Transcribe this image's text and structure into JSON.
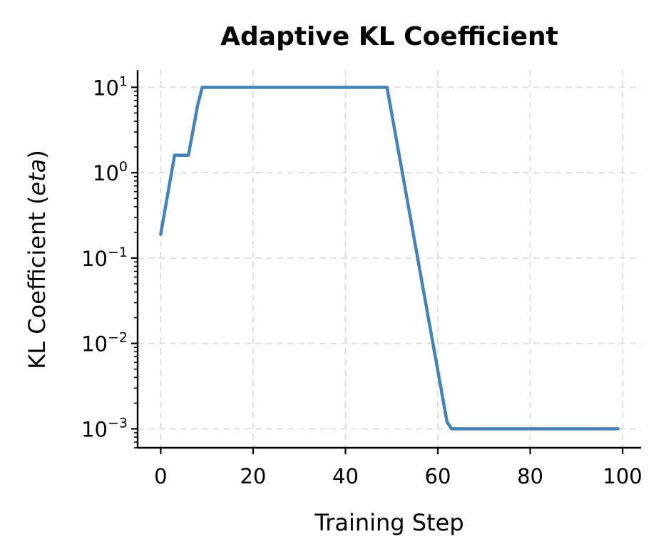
{
  "chart_data": {
    "type": "line",
    "title": "Adaptive KL Coefficient",
    "xlabel": "Training Step",
    "ylabel": "KL Coefficient (eta)",
    "ylabel_prefix": "KL Coefficient (",
    "ylabel_italic": "eta",
    "ylabel_suffix": ")",
    "xlim": [
      -5,
      104
    ],
    "ylim": [
      0.0006,
      16
    ],
    "yscale": "log",
    "grid": true,
    "x_ticks": [
      {
        "value": 0,
        "label": "0"
      },
      {
        "value": 20,
        "label": "20"
      },
      {
        "value": 40,
        "label": "40"
      },
      {
        "value": 60,
        "label": "60"
      },
      {
        "value": 80,
        "label": "80"
      },
      {
        "value": 100,
        "label": "100"
      }
    ],
    "y_ticks": [
      {
        "value": 10,
        "base": "10",
        "exp": "1"
      },
      {
        "value": 1,
        "base": "10",
        "exp": "0"
      },
      {
        "value": 0.1,
        "base": "10",
        "exp": "−1"
      },
      {
        "value": 0.01,
        "base": "10",
        "exp": "−2"
      },
      {
        "value": 0.001,
        "base": "10",
        "exp": "−3"
      }
    ],
    "series": [
      {
        "color": "#4682b4",
        "x": [
          0,
          3,
          6,
          8,
          9,
          49,
          62,
          63,
          99
        ],
        "y": [
          0.19,
          1.6,
          1.6,
          6.2,
          10,
          10,
          0.0012,
          0.001,
          0.001
        ]
      }
    ]
  }
}
